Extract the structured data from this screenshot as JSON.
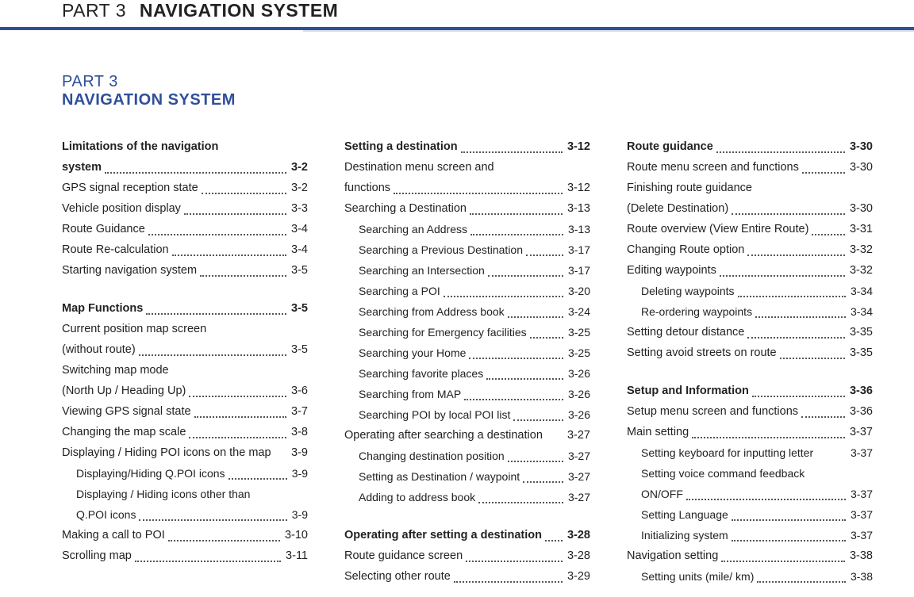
{
  "header": {
    "part": "PART 3",
    "title": "NAVIGATION SYSTEM"
  },
  "subhead": {
    "part": "PART 3",
    "title": "NAVIGATION SYSTEM"
  },
  "colors": {
    "accent": "#2f4f99",
    "text": "#222222",
    "leader": "#555555"
  },
  "columns": [
    [
      {
        "type": "section",
        "label": "Limitations of the navigation",
        "cont": true
      },
      {
        "type": "section",
        "label": "system",
        "page": "3-2"
      },
      {
        "type": "item",
        "label": "GPS signal reception state",
        "page": "3-2"
      },
      {
        "type": "item",
        "label": "Vehicle position display",
        "page": "3-3"
      },
      {
        "type": "item",
        "label": "Route Guidance",
        "page": "3-4"
      },
      {
        "type": "item",
        "label": "Route Re-calculation",
        "page": "3-4"
      },
      {
        "type": "item",
        "label": "Starting navigation system",
        "page": "3-5"
      },
      {
        "type": "spacer"
      },
      {
        "type": "section",
        "label": "Map Functions",
        "page": "3-5"
      },
      {
        "type": "item",
        "label": "Current position map screen",
        "cont": true
      },
      {
        "type": "item",
        "label": "(without route)",
        "page": "3-5"
      },
      {
        "type": "item",
        "label": "Switching map mode",
        "cont": true
      },
      {
        "type": "item",
        "label": "(North Up / Heading Up)",
        "page": "3-6"
      },
      {
        "type": "item",
        "label": "Viewing GPS signal state",
        "page": "3-7"
      },
      {
        "type": "item",
        "label": "Changing the map scale",
        "page": "3-8"
      },
      {
        "type": "item",
        "label": "Displaying / Hiding POI icons on the map",
        "page": "3-9",
        "noleader": true
      },
      {
        "type": "sub",
        "label": "Displaying/Hiding Q.POI icons",
        "page": "3-9"
      },
      {
        "type": "sub",
        "label": "Displaying / Hiding icons other than",
        "cont": true
      },
      {
        "type": "sub",
        "label": "Q.POI icons",
        "page": "3-9"
      },
      {
        "type": "item",
        "label": "Making a call to POI",
        "page": "3-10"
      },
      {
        "type": "item",
        "label": "Scrolling map",
        "page": "3-11"
      }
    ],
    [
      {
        "type": "section",
        "label": "Setting a destination",
        "page": "3-12"
      },
      {
        "type": "item",
        "label": "Destination menu screen and",
        "cont": true
      },
      {
        "type": "item",
        "label": "functions",
        "page": "3-12"
      },
      {
        "type": "item",
        "label": "Searching a Destination",
        "page": "3-13"
      },
      {
        "type": "sub",
        "label": "Searching an Address",
        "page": "3-13"
      },
      {
        "type": "sub",
        "label": "Searching a Previous Destination",
        "page": "3-17"
      },
      {
        "type": "sub",
        "label": "Searching an Intersection",
        "page": "3-17"
      },
      {
        "type": "sub",
        "label": "Searching a POI",
        "page": "3-20"
      },
      {
        "type": "sub",
        "label": "Searching from Address book",
        "page": "3-24"
      },
      {
        "type": "sub",
        "label": "Searching for Emergency facilities",
        "page": "3-25"
      },
      {
        "type": "sub",
        "label": "Searching your Home",
        "page": "3-25"
      },
      {
        "type": "sub",
        "label": "Searching favorite places",
        "page": "3-26"
      },
      {
        "type": "sub",
        "label": "Searching from MAP",
        "page": "3-26"
      },
      {
        "type": "sub",
        "label": "Searching POI by local POI list",
        "page": "3-26"
      },
      {
        "type": "item",
        "label": "Operating after searching a destination",
        "page": "3-27",
        "noleader": true
      },
      {
        "type": "sub",
        "label": "Changing destination position",
        "page": "3-27"
      },
      {
        "type": "sub",
        "label": "Setting as Destination / waypoint",
        "page": "3-27"
      },
      {
        "type": "sub",
        "label": "Adding to address book",
        "page": "3-27"
      },
      {
        "type": "spacer"
      },
      {
        "type": "section",
        "label": "Operating after setting a destination",
        "page": "3-28"
      },
      {
        "type": "item",
        "label": "Route guidance screen",
        "page": "3-28"
      },
      {
        "type": "item",
        "label": "Selecting other route",
        "page": "3-29"
      }
    ],
    [
      {
        "type": "section",
        "label": "Route guidance",
        "page": "3-30"
      },
      {
        "type": "item",
        "label": "Route menu screen and functions",
        "page": "3-30"
      },
      {
        "type": "item",
        "label": "Finishing route guidance",
        "cont": true
      },
      {
        "type": "item",
        "label": "(Delete Destination)",
        "page": "3-30"
      },
      {
        "type": "item",
        "label": "Route overview (View Entire Route)",
        "page": "3-31"
      },
      {
        "type": "item",
        "label": "Changing Route option",
        "page": "3-32"
      },
      {
        "type": "item",
        "label": "Editing waypoints",
        "page": "3-32"
      },
      {
        "type": "sub",
        "label": "Deleting waypoints",
        "page": "3-34"
      },
      {
        "type": "sub",
        "label": "Re-ordering waypoints",
        "page": "3-34"
      },
      {
        "type": "item",
        "label": "Setting detour distance",
        "page": "3-35"
      },
      {
        "type": "item",
        "label": "Setting avoid streets on route",
        "page": "3-35"
      },
      {
        "type": "spacer"
      },
      {
        "type": "section",
        "label": "Setup and Information",
        "page": "3-36"
      },
      {
        "type": "item",
        "label": "Setup menu screen and functions",
        "page": "3-36"
      },
      {
        "type": "item",
        "label": "Main setting",
        "page": "3-37"
      },
      {
        "type": "sub",
        "label": "Setting keyboard for inputting letter",
        "page": "3-37",
        "noleader": true
      },
      {
        "type": "sub",
        "label": "Setting voice command feedback",
        "cont": true
      },
      {
        "type": "sub",
        "label": "ON/OFF",
        "page": "3-37"
      },
      {
        "type": "sub",
        "label": "Setting Language",
        "page": "3-37"
      },
      {
        "type": "sub",
        "label": "Initializing system",
        "page": "3-37"
      },
      {
        "type": "item",
        "label": "Navigation setting",
        "page": "3-38"
      },
      {
        "type": "sub",
        "label": "Setting units (mile/ km)",
        "page": "3-38"
      }
    ]
  ]
}
